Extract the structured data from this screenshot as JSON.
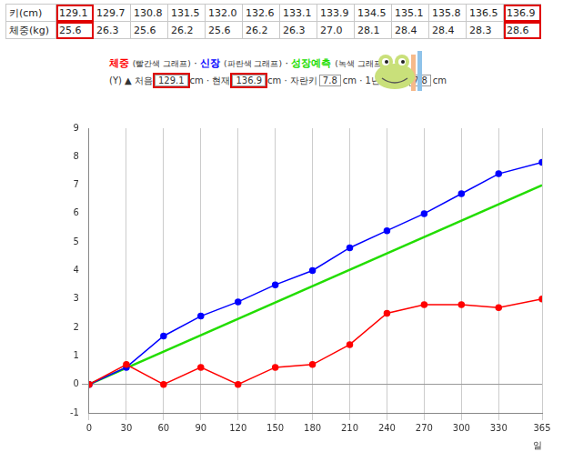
{
  "table": {
    "rows": [
      {
        "header": "키(cm)",
        "cells": [
          "129.1",
          "129.7",
          "130.8",
          "131.5",
          "132.0",
          "132.6",
          "133.1",
          "133.9",
          "134.5",
          "135.1",
          "135.8",
          "136.5",
          "136.9"
        ]
      },
      {
        "header": "체중(kg)",
        "cells": [
          "25.6",
          "26.3",
          "25.6",
          "26.2",
          "25.6",
          "26.2",
          "26.3",
          "27.0",
          "28.1",
          "28.4",
          "28.4",
          "28.3",
          "28.6"
        ]
      }
    ]
  },
  "legend_line": {
    "notes": [
      "(빨간색 그래프)",
      "(파란색 그래프)",
      "(녹색 그래프)"
    ],
    "separator": "·"
  },
  "info_line": {
    "prefix": "(Y) ▲",
    "separator": "·",
    "items": [
      {
        "label": "처음",
        "value": "129.1",
        "unit": "cm"
      },
      {
        "label": "현재",
        "value": "136.9",
        "unit": "cm"
      },
      {
        "label": "자란키",
        "value": "7.8",
        "unit": "cm"
      },
      {
        "label": "1년예상키",
        "value": "7.8",
        "unit": "cm"
      }
    ]
  },
  "chart_data": {
    "type": "line",
    "x_label": "일",
    "x": [
      0,
      30,
      60,
      90,
      120,
      150,
      180,
      210,
      240,
      270,
      300,
      330,
      365
    ],
    "series": [
      {
        "name": "체중",
        "color": "#ff0000",
        "marker": "circle",
        "values": [
          0,
          0.7,
          0,
          0.6,
          0,
          0.6,
          0.7,
          1.4,
          2.5,
          2.8,
          2.8,
          2.7,
          3.0
        ]
      },
      {
        "name": "신장",
        "color": "#0000ff",
        "marker": "circle",
        "values": [
          0,
          0.6,
          1.7,
          2.4,
          2.9,
          3.5,
          4.0,
          4.8,
          5.4,
          6.0,
          6.7,
          7.4,
          7.8
        ]
      },
      {
        "name": "성장예측",
        "color": "#22dd00",
        "marker": "none",
        "values": [
          0,
          null,
          null,
          null,
          null,
          null,
          null,
          null,
          null,
          null,
          null,
          null,
          7.0
        ]
      }
    ],
    "xlim": [
      0,
      365
    ],
    "xticks": [
      0,
      30,
      60,
      90,
      120,
      150,
      180,
      210,
      240,
      270,
      300,
      330,
      365
    ],
    "ylim": [
      -1,
      9
    ],
    "yticks": [
      -1,
      0,
      1,
      2,
      3,
      4,
      5,
      6,
      7,
      8,
      9
    ],
    "grid": "x"
  }
}
